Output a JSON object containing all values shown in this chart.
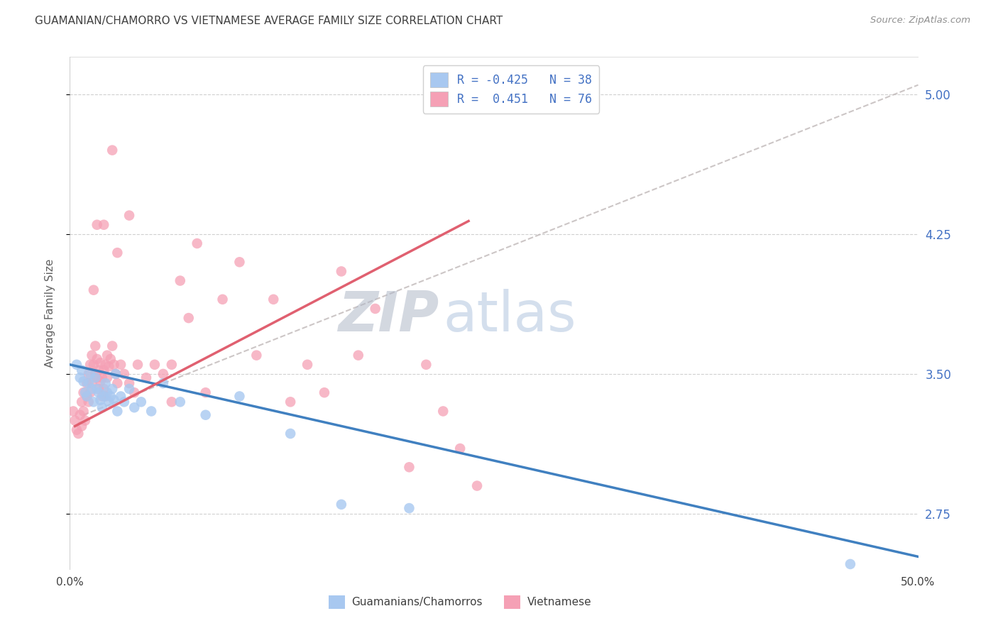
{
  "title": "GUAMANIAN/CHAMORRO VS VIETNAMESE AVERAGE FAMILY SIZE CORRELATION CHART",
  "source": "Source: ZipAtlas.com",
  "ylabel": "Average Family Size",
  "xlim": [
    0.0,
    0.5
  ],
  "ylim": [
    2.45,
    5.2
  ],
  "xticks": [
    0.0,
    0.1,
    0.2,
    0.3,
    0.4,
    0.5
  ],
  "xticklabels": [
    "0.0%",
    "",
    "",
    "",
    "",
    "50.0%"
  ],
  "yticks": [
    2.75,
    3.5,
    4.25,
    5.0
  ],
  "right_yticklabels": [
    "2.75",
    "3.50",
    "4.25",
    "5.00"
  ],
  "blue_color": "#a8c8f0",
  "pink_color": "#f5a0b5",
  "blue_line_color": "#4080c0",
  "pink_line_color": "#e06070",
  "dashed_line_color": "#c0b8b8",
  "legend_R_blue": "-0.425",
  "legend_N_blue": "38",
  "legend_R_pink": "0.451",
  "legend_N_pink": "76",
  "legend_label_blue": "Guamanians/Chamorros",
  "legend_label_pink": "Vietnamese",
  "watermark_zip": "ZIP",
  "watermark_atlas": "atlas",
  "title_color": "#404040",
  "axis_label_color": "#606060",
  "right_axis_color": "#4472c4",
  "blue_scatter_x": [
    0.004,
    0.006,
    0.007,
    0.008,
    0.009,
    0.01,
    0.011,
    0.012,
    0.013,
    0.014,
    0.015,
    0.016,
    0.017,
    0.018,
    0.019,
    0.02,
    0.021,
    0.022,
    0.023,
    0.024,
    0.025,
    0.026,
    0.027,
    0.028,
    0.03,
    0.032,
    0.035,
    0.038,
    0.042,
    0.048,
    0.055,
    0.065,
    0.08,
    0.1,
    0.13,
    0.16,
    0.2,
    0.46
  ],
  "blue_scatter_y": [
    3.55,
    3.48,
    3.52,
    3.46,
    3.4,
    3.38,
    3.45,
    3.5,
    3.42,
    3.35,
    3.48,
    3.42,
    3.4,
    3.36,
    3.32,
    3.38,
    3.45,
    3.4,
    3.35,
    3.38,
    3.42,
    3.36,
    3.5,
    3.3,
    3.38,
    3.35,
    3.42,
    3.32,
    3.35,
    3.3,
    3.45,
    3.35,
    3.28,
    3.38,
    3.18,
    2.8,
    2.78,
    2.48
  ],
  "pink_scatter_x": [
    0.002,
    0.003,
    0.004,
    0.005,
    0.006,
    0.007,
    0.007,
    0.008,
    0.008,
    0.009,
    0.01,
    0.01,
    0.011,
    0.011,
    0.012,
    0.012,
    0.013,
    0.013,
    0.014,
    0.015,
    0.015,
    0.016,
    0.016,
    0.017,
    0.017,
    0.018,
    0.018,
    0.019,
    0.019,
    0.02,
    0.02,
    0.021,
    0.021,
    0.022,
    0.022,
    0.023,
    0.024,
    0.025,
    0.026,
    0.027,
    0.028,
    0.03,
    0.032,
    0.035,
    0.038,
    0.04,
    0.045,
    0.05,
    0.055,
    0.06,
    0.065,
    0.07,
    0.075,
    0.08,
    0.09,
    0.1,
    0.11,
    0.12,
    0.13,
    0.14,
    0.15,
    0.16,
    0.17,
    0.18,
    0.2,
    0.21,
    0.22,
    0.23,
    0.24,
    0.025,
    0.014,
    0.016,
    0.02,
    0.028,
    0.035,
    0.06
  ],
  "pink_scatter_y": [
    3.3,
    3.25,
    3.2,
    3.18,
    3.28,
    3.22,
    3.35,
    3.3,
    3.4,
    3.25,
    3.38,
    3.45,
    3.35,
    3.5,
    3.4,
    3.55,
    3.45,
    3.6,
    3.55,
    3.5,
    3.65,
    3.48,
    3.58,
    3.42,
    3.52,
    3.46,
    3.56,
    3.38,
    3.48,
    3.42,
    3.52,
    3.38,
    3.55,
    3.48,
    3.6,
    3.54,
    3.58,
    3.65,
    3.55,
    3.5,
    3.45,
    3.55,
    3.5,
    3.45,
    3.4,
    3.55,
    3.48,
    3.55,
    3.5,
    3.55,
    4.0,
    3.8,
    4.2,
    3.4,
    3.9,
    4.1,
    3.6,
    3.9,
    3.35,
    3.55,
    3.4,
    4.05,
    3.6,
    3.85,
    3.0,
    3.55,
    3.3,
    3.1,
    2.9,
    4.7,
    3.95,
    4.3,
    4.3,
    4.15,
    4.35,
    3.35
  ],
  "blue_line_x": [
    0.0,
    0.5
  ],
  "blue_line_y": [
    3.55,
    2.52
  ],
  "pink_line_x": [
    0.003,
    0.235
  ],
  "pink_line_y": [
    3.22,
    4.32
  ],
  "dashed_line_x": [
    0.008,
    0.5
  ],
  "dashed_line_y": [
    3.28,
    5.05
  ]
}
